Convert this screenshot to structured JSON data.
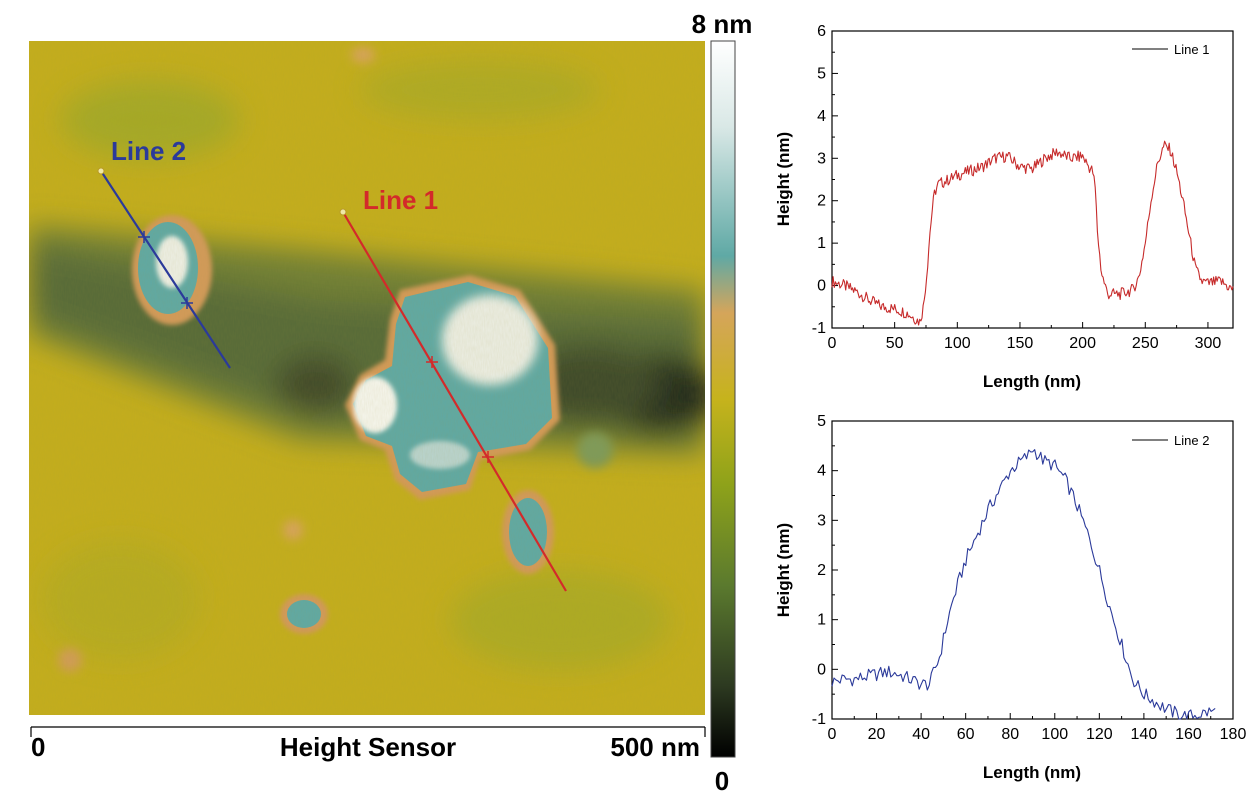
{
  "afm_image": {
    "colorbar_max_label": "8 nm",
    "colorbar_min_label": "0",
    "scale_start_label": "0",
    "scale_end_label": "500 nm",
    "scale_title": "Height Sensor",
    "colors": {
      "background": "#c4ae1c",
      "trench": "#56683a",
      "particle": "#5fa9a5",
      "particle_peak": "#f2f2ea",
      "rim": "#d49a58",
      "line1": "#d32a2a",
      "line2": "#2b3a9a"
    },
    "colorbar_stops": [
      "#ffffff",
      "#d9e8e6",
      "#5fa9a5",
      "#d5a55a",
      "#c6b31c",
      "#8ea21a",
      "#5b7a2e",
      "#2d3a21",
      "#000000"
    ],
    "line_labels": [
      {
        "label": "Line 1",
        "color": "#d32a2a"
      },
      {
        "label": "Line 2",
        "color": "#2b3a9a"
      }
    ]
  },
  "chart_data": [
    {
      "type": "line",
      "title": "",
      "xlabel": "Length (nm)",
      "ylabel": "Height (nm)",
      "xlim": [
        0,
        320
      ],
      "ylim": [
        -1,
        6
      ],
      "xticks": [
        0,
        50,
        100,
        150,
        200,
        250,
        300
      ],
      "yticks": [
        -1,
        0,
        1,
        2,
        3,
        4,
        5,
        6
      ],
      "legend_position": "top-right",
      "grid": false,
      "series": [
        {
          "name": "Line 1",
          "color": "#c62b2b",
          "x": [
            0,
            10,
            20,
            30,
            40,
            50,
            60,
            65,
            70,
            73,
            76,
            78,
            80,
            82,
            85,
            90,
            100,
            110,
            120,
            130,
            140,
            150,
            160,
            170,
            180,
            190,
            200,
            205,
            208,
            210,
            212,
            215,
            220,
            230,
            240,
            245,
            250,
            255,
            260,
            265,
            270,
            275,
            280,
            285,
            290,
            295,
            300,
            310,
            320
          ],
          "y": [
            0.1,
            0.0,
            -0.15,
            -0.35,
            -0.5,
            -0.55,
            -0.65,
            -0.75,
            -0.85,
            -0.5,
            0.4,
            1.2,
            1.8,
            2.2,
            2.4,
            2.45,
            2.6,
            2.7,
            2.8,
            3.0,
            3.05,
            2.8,
            2.75,
            3.0,
            3.15,
            3.0,
            3.05,
            2.8,
            2.7,
            2.3,
            1.2,
            0.3,
            -0.2,
            -0.2,
            -0.1,
            0.2,
            1.0,
            2.1,
            2.9,
            3.3,
            3.2,
            2.7,
            2.0,
            1.2,
            0.4,
            0.1,
            0.05,
            0.1,
            -0.1
          ]
        }
      ]
    },
    {
      "type": "line",
      "title": "",
      "xlabel": "Length (nm)",
      "ylabel": "Height (nm)",
      "xlim": [
        0,
        180
      ],
      "ylim": [
        -1,
        5
      ],
      "xticks": [
        0,
        20,
        40,
        60,
        80,
        100,
        120,
        140,
        160,
        180
      ],
      "yticks": [
        -1,
        0,
        1,
        2,
        3,
        4,
        5
      ],
      "legend_position": "top-right",
      "grid": false,
      "series": [
        {
          "name": "Line 2",
          "color": "#2b3a9a",
          "x": [
            0,
            5,
            10,
            15,
            20,
            25,
            30,
            35,
            40,
            44,
            46,
            48,
            50,
            52,
            55,
            60,
            65,
            70,
            75,
            80,
            85,
            88,
            90,
            92,
            95,
            100,
            105,
            110,
            115,
            120,
            125,
            130,
            135,
            140,
            145,
            150,
            155,
            160,
            165,
            170,
            172
          ],
          "y": [
            -0.25,
            -0.2,
            -0.2,
            -0.15,
            -0.1,
            -0.05,
            -0.1,
            -0.2,
            -0.3,
            -0.3,
            0.0,
            0.2,
            0.6,
            1.0,
            1.5,
            2.2,
            2.7,
            3.2,
            3.6,
            4.0,
            4.2,
            4.3,
            4.45,
            4.35,
            4.2,
            4.1,
            3.8,
            3.3,
            2.7,
            2.0,
            1.2,
            0.5,
            -0.2,
            -0.5,
            -0.65,
            -0.8,
            -0.9,
            -0.95,
            -0.9,
            -0.85,
            -0.85
          ]
        }
      ]
    }
  ]
}
